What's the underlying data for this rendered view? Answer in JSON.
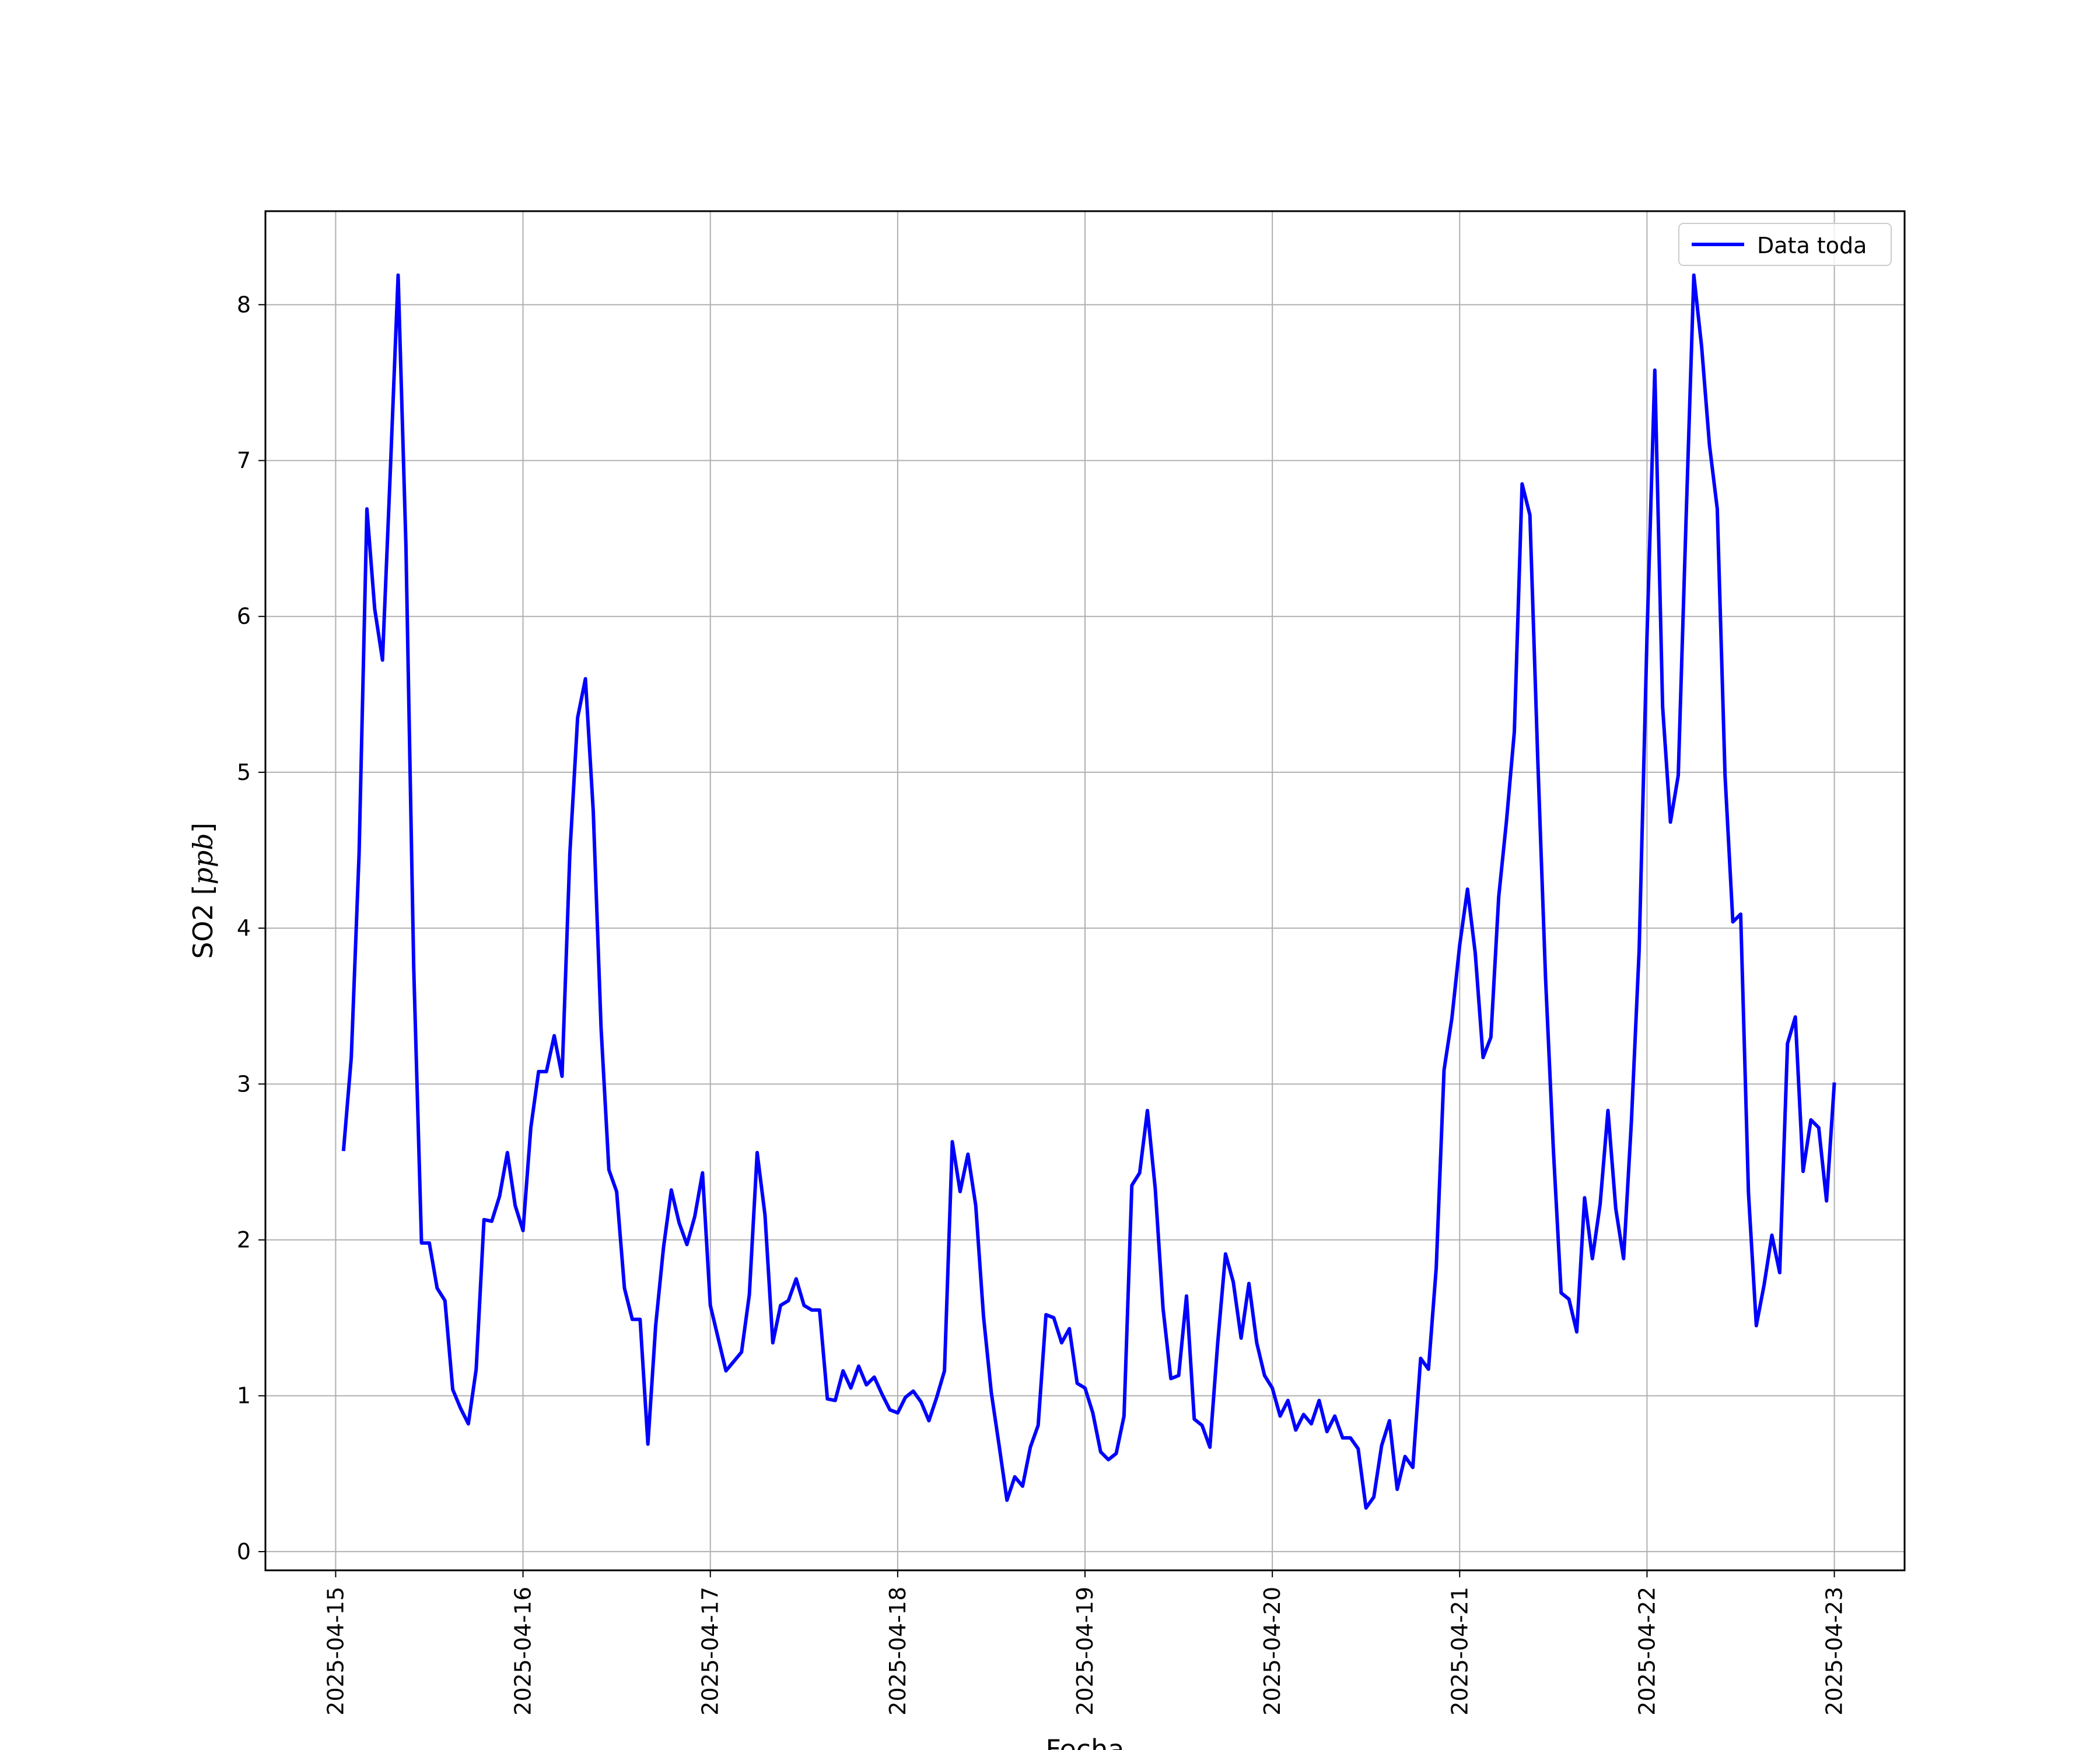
{
  "chart_data": {
    "type": "line",
    "xlabel": "Fecha",
    "ylabel_text": "SO2",
    "ylabel_unit": "ppb",
    "xlim": [
      "2025-04-14 15:00",
      "2025-04-23 09:00"
    ],
    "ylim": [
      -0.12,
      8.6
    ],
    "grid": true,
    "legend_position": "top-right",
    "x_ticks": [
      "2025-04-15",
      "2025-04-16",
      "2025-04-17",
      "2025-04-18",
      "2025-04-19",
      "2025-04-20",
      "2025-04-21",
      "2025-04-22",
      "2025-04-23"
    ],
    "y_ticks": [
      0,
      1,
      2,
      3,
      4,
      5,
      6,
      7,
      8
    ],
    "series": [
      {
        "name": "Data toda",
        "color": "#0000ff",
        "x_start": "2025-04-15 01:00",
        "interval_hours": 1,
        "values": [
          2.57,
          3.17,
          4.48,
          6.69,
          6.05,
          5.72,
          6.93,
          8.19,
          6.45,
          3.75,
          1.98,
          1.98,
          1.69,
          1.61,
          1.04,
          0.92,
          0.82,
          1.17,
          2.13,
          2.12,
          2.28,
          2.56,
          2.22,
          2.06,
          2.72,
          3.08,
          3.08,
          3.31,
          3.05,
          4.48,
          5.35,
          5.6,
          4.75,
          3.36,
          2.45,
          2.31,
          1.69,
          1.49,
          1.49,
          0.69,
          1.45,
          1.95,
          2.32,
          2.11,
          1.97,
          2.15,
          2.43,
          1.58,
          1.37,
          1.16,
          1.22,
          1.28,
          1.65,
          2.56,
          2.16,
          1.34,
          1.58,
          1.61,
          1.75,
          1.58,
          1.55,
          1.55,
          0.98,
          0.97,
          1.16,
          1.05,
          1.19,
          1.07,
          1.12,
          1.01,
          0.91,
          0.89,
          0.99,
          1.03,
          0.96,
          0.84,
          0.99,
          1.16,
          2.63,
          2.31,
          2.55,
          2.22,
          1.51,
          1.02,
          0.68,
          0.33,
          0.48,
          0.42,
          0.67,
          0.81,
          1.52,
          1.5,
          1.34,
          1.43,
          1.08,
          1.05,
          0.89,
          0.64,
          0.59,
          0.63,
          0.87,
          2.35,
          2.43,
          2.83,
          2.33,
          1.56,
          1.11,
          1.13,
          1.64,
          0.85,
          0.81,
          0.67,
          1.34,
          1.91,
          1.73,
          1.37,
          1.72,
          1.34,
          1.13,
          1.05,
          0.87,
          0.97,
          0.78,
          0.88,
          0.82,
          0.97,
          0.77,
          0.87,
          0.73,
          0.73,
          0.66,
          0.28,
          0.35,
          0.68,
          0.84,
          0.4,
          0.61,
          0.54,
          1.24,
          1.17,
          1.82,
          3.09,
          3.42,
          3.89,
          4.25,
          3.84,
          3.17,
          3.3,
          4.2,
          4.69,
          5.26,
          6.85,
          6.65,
          5.09,
          3.68,
          2.58,
          1.66,
          1.62,
          1.41,
          2.27,
          1.88,
          2.23,
          2.83,
          2.2,
          1.88,
          2.76,
          3.86,
          5.87,
          7.58,
          5.42,
          4.68,
          4.98,
          6.61,
          8.19,
          7.73,
          7.1,
          6.69,
          4.98,
          4.04,
          4.09,
          2.3,
          1.45,
          1.71,
          2.03,
          1.79,
          3.26,
          3.43,
          2.44,
          2.77,
          2.72,
          2.25,
          3.01
        ]
      }
    ]
  }
}
